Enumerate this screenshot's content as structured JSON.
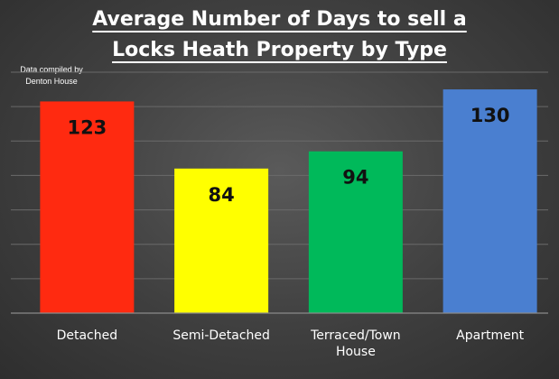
{
  "chart_data": {
    "type": "bar",
    "title_lines": [
      "Average Number of Days to sell a",
      "Locks Heath Property by Type"
    ],
    "credit_lines": [
      "Data compiled by",
      "Denton House"
    ],
    "categories": [
      "Detached",
      "Semi-Detached",
      "Terraced/Town House",
      "Apartment"
    ],
    "category_label_lines": [
      [
        "Detached"
      ],
      [
        "Semi-Detached"
      ],
      [
        "Terraced/Town",
        "House"
      ],
      [
        "Apartment"
      ]
    ],
    "values": [
      123,
      84,
      94,
      130
    ],
    "colors": [
      "#ff2a10",
      "#ffff00",
      "#00b95a",
      "#4a7fd0"
    ],
    "ylim": [
      0,
      140
    ],
    "grid": true,
    "xlabel": "",
    "ylabel": ""
  }
}
